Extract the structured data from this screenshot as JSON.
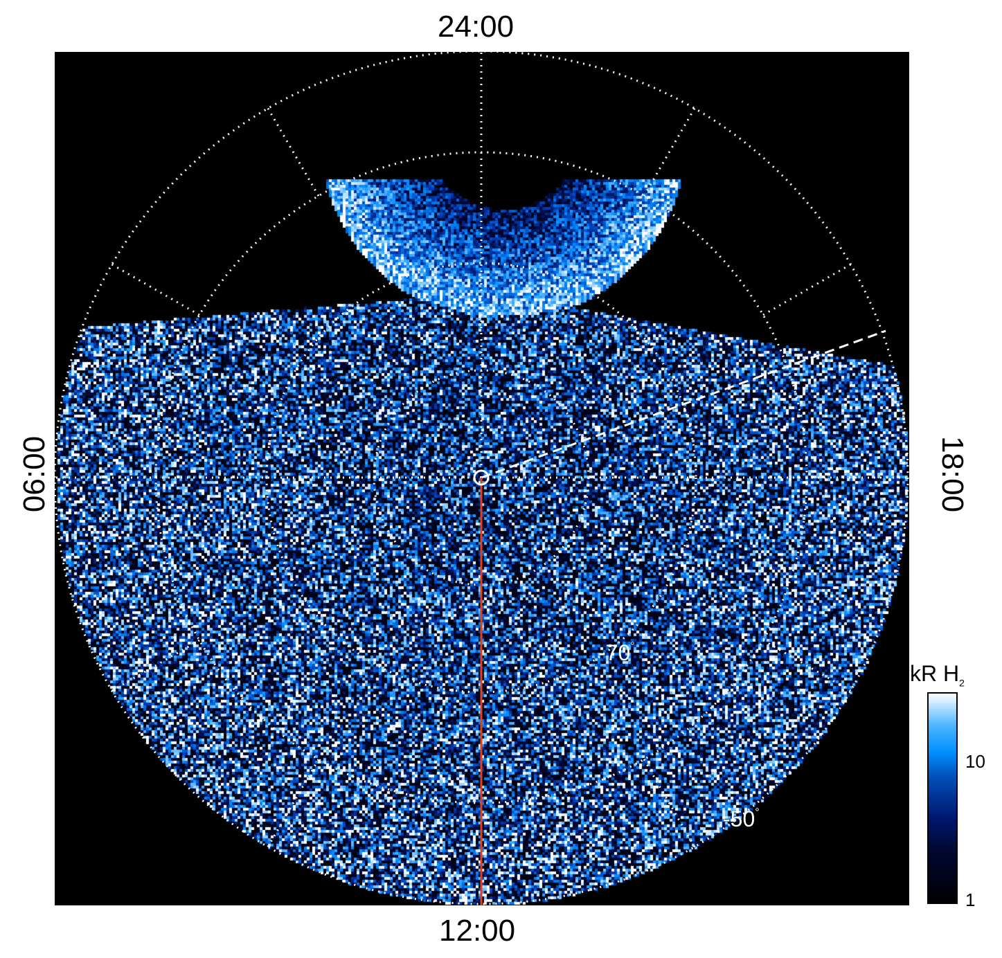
{
  "chart_data": {
    "type": "heatmap",
    "projection": "polar (southern hemisphere, local time vs latitude)",
    "local_time_labels": {
      "top": "24:00",
      "bottom": "12:00",
      "left": "06:00",
      "right": "18:00"
    },
    "latitude_labels": [
      "-70",
      "-50"
    ],
    "latitude_unit": "°",
    "latitude_grid": [
      -80,
      -70,
      -60,
      -50
    ],
    "local_time_grid_hours": [
      0,
      2,
      4,
      6,
      8,
      10,
      12,
      14,
      16,
      18,
      20,
      22
    ],
    "colorbar": {
      "title": "kR H",
      "title_subscript": "2",
      "scale": "log",
      "range": [
        1,
        25
      ],
      "tick_labels": [
        "10",
        "1"
      ],
      "ticks": [
        10,
        1
      ]
    },
    "colors": {
      "background": "#000000",
      "grid": "#ffffff",
      "meridian_line": "#e0401a",
      "low": "#000010",
      "mid": "#0070e0",
      "high": "#ffffff"
    }
  }
}
